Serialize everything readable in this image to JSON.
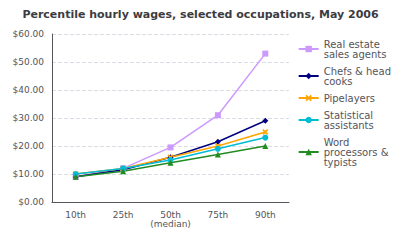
{
  "chart_data": {
    "type": "line",
    "title": "Percentile hourly wages, selected occupations, May 2006",
    "categories": [
      "10th",
      "25th",
      "50th\n(median)",
      "75th",
      "90th"
    ],
    "series": [
      {
        "name": "Real estate\nsales agents",
        "color": "#cc99ff",
        "marker": "square",
        "line_style": "solid",
        "values": [
          9.0,
          12.0,
          19.5,
          31.0,
          53.0
        ]
      },
      {
        "name": "Chefs & head\ncooks",
        "color": "#000080",
        "marker": "diamond",
        "line_style": "solid",
        "values": [
          9.0,
          11.5,
          16.0,
          21.5,
          29.0
        ]
      },
      {
        "name": "Pipelayers",
        "color": "#ffa500",
        "marker": "x",
        "line_style": "solid",
        "values": [
          10.0,
          12.0,
          16.0,
          20.0,
          25.0
        ]
      },
      {
        "name": "Statistical\nassistants",
        "color": "#00bcd4",
        "marker": "circle",
        "line_style": "solid",
        "values": [
          10.0,
          12.0,
          15.0,
          19.0,
          23.0
        ]
      },
      {
        "name": "Word\nprocessors &\ntypists",
        "color": "#228B22",
        "marker": "triangle",
        "line_style": "solid",
        "values": [
          9.0,
          11.0,
          14.0,
          17.0,
          20.0
        ]
      }
    ],
    "ylim": [
      0,
      60
    ],
    "yticks": [
      {
        "value": 0,
        "label": "$0.00"
      },
      {
        "value": 10,
        "label": "$10.00"
      },
      {
        "value": 20,
        "label": "$20.00"
      },
      {
        "value": 30,
        "label": "$30.00"
      },
      {
        "value": 40,
        "label": "$40.00"
      },
      {
        "value": 50,
        "label": "$50.00"
      },
      {
        "value": 60,
        "label": "$60.00"
      }
    ],
    "grid": true,
    "legend": "right"
  }
}
